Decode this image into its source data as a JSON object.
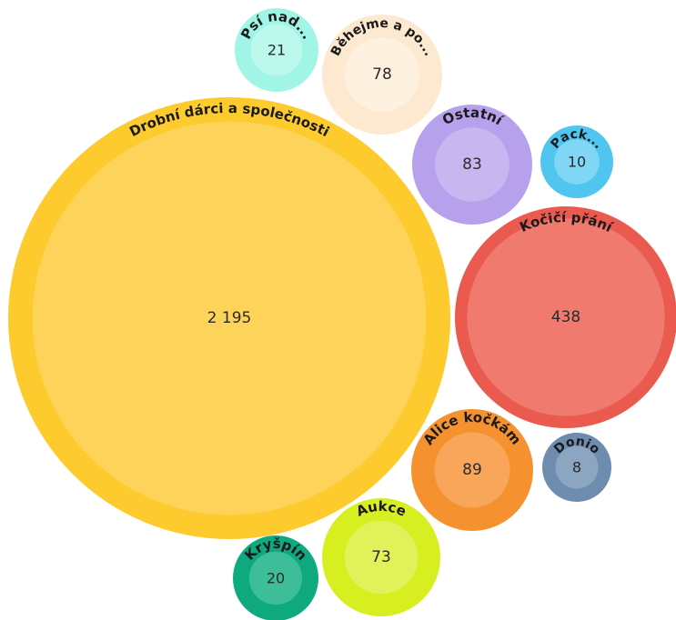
{
  "chart_data": {
    "type": "bubble",
    "title": "",
    "series": [
      {
        "name": "Drobní dárci a společnosti",
        "value": 2195,
        "value_label": "2 195",
        "color": "#FECB2F",
        "inner_color": "#FED35A"
      },
      {
        "name": "Kočičí přání",
        "value": 438,
        "value_label": "438",
        "color": "#EB5A4E",
        "inner_color": "#F07A6E"
      },
      {
        "name": "Alice kočkám",
        "value": 89,
        "value_label": "89",
        "color": "#F5912F",
        "inner_color": "#F9A65A"
      },
      {
        "name": "Ostatní",
        "value": 83,
        "value_label": "83",
        "color": "#B7A0EC",
        "inner_color": "#C7B6F0"
      },
      {
        "name": "Běhejme a po...",
        "value": 78,
        "value_label": "78",
        "color": "#FDE9CF",
        "inner_color": "#FEF1DF"
      },
      {
        "name": "Aukce",
        "value": 73,
        "value_label": "73",
        "color": "#D7EE21",
        "inner_color": "#E1F15A"
      },
      {
        "name": "Psí nad...",
        "value": 21,
        "value_label": "21",
        "color": "#A0F5E6",
        "inner_color": "#BDF8ED"
      },
      {
        "name": "Kryšpín",
        "value": 20,
        "value_label": "20",
        "color": "#0FA97F",
        "inner_color": "#3DBD98"
      },
      {
        "name": "Pack...",
        "value": 10,
        "value_label": "10",
        "color": "#4FC5F0",
        "inner_color": "#80D6F5"
      },
      {
        "name": "Donio",
        "value": 8,
        "value_label": "8",
        "color": "#6E8CAE",
        "inner_color": "#8CA5C1"
      }
    ]
  }
}
